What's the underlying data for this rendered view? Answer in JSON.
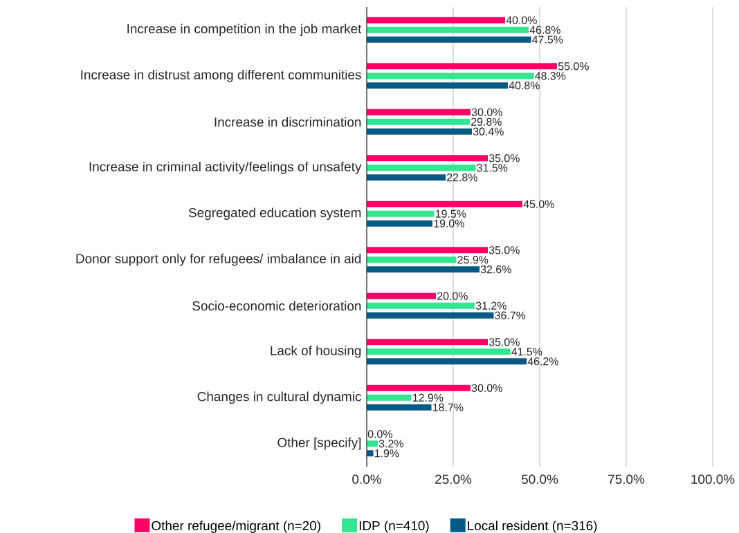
{
  "chart_data": {
    "type": "bar",
    "orientation": "horizontal",
    "categories": [
      "Increase in competition in the job market",
      "Increase in distrust among different communities",
      "Increase in discrimination",
      "Increase in criminal activity/feelings of unsafety",
      "Segregated education system",
      "Donor support only for refugees/ imbalance in aid",
      "Socio-economic deterioration",
      "Lack of housing",
      "Changes in cultural dynamic",
      "Other [specify]"
    ],
    "series": [
      {
        "name": "Other refugee/migrant (n=20)",
        "color": "#ff0066",
        "values": [
          40.0,
          55.0,
          30.0,
          35.0,
          45.0,
          35.0,
          20.0,
          35.0,
          30.0,
          0.0
        ],
        "value_labels": [
          "40.0%",
          "55.0%",
          "30.0%",
          "35.0%",
          "45.0%",
          "35.0%",
          "20.0%",
          "35.0%",
          "30.0%",
          "0.0%"
        ]
      },
      {
        "name": "IDP (n=410)",
        "color": "#33e690",
        "values": [
          46.8,
          48.3,
          29.8,
          31.5,
          19.5,
          25.9,
          31.2,
          41.5,
          12.9,
          3.2
        ],
        "value_labels": [
          "46.8%",
          "48.3%",
          "29.8%",
          "31.5%",
          "19.5%",
          "25.9%",
          "31.2%",
          "41.5%",
          "12.9%",
          "3.2%"
        ]
      },
      {
        "name": "Local resident (n=316)",
        "color": "#045a84",
        "values": [
          47.5,
          40.8,
          30.4,
          22.8,
          19.0,
          32.6,
          36.7,
          46.2,
          18.7,
          1.9
        ],
        "value_labels": [
          "47.5%",
          "40.8%",
          "30.4%",
          "22.8%",
          "19.0%",
          "32.6%",
          "36.7%",
          "46.2%",
          "18.7%",
          "1.9%"
        ]
      }
    ],
    "xlim": [
      0,
      100
    ],
    "xticks": [
      {
        "value": 0,
        "label": "0.0%"
      },
      {
        "value": 25,
        "label": "25.0%"
      },
      {
        "value": 50,
        "label": "50.0%"
      },
      {
        "value": 75,
        "label": "75.0%"
      },
      {
        "value": 100,
        "label": "100.0%"
      }
    ],
    "grid": "x",
    "legend": "bottom"
  }
}
